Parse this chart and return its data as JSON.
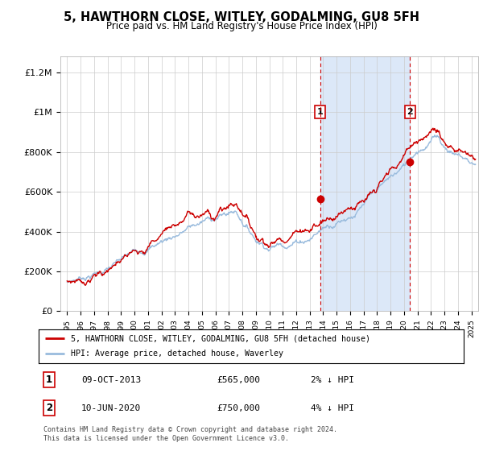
{
  "title": "5, HAWTHORN CLOSE, WITLEY, GODALMING, GU8 5FH",
  "subtitle": "Price paid vs. HM Land Registry's House Price Index (HPI)",
  "background_color": "#ffffff",
  "plot_bg_color": "#ffffff",
  "ylabel_ticks": [
    "£0",
    "£200K",
    "£400K",
    "£600K",
    "£800K",
    "£1M",
    "£1.2M"
  ],
  "ytick_values": [
    0,
    200000,
    400000,
    600000,
    800000,
    1000000,
    1200000
  ],
  "ylim": [
    0,
    1280000
  ],
  "xlim_start": 1994.5,
  "xlim_end": 2025.5,
  "xticks": [
    1995,
    1996,
    1997,
    1998,
    1999,
    2000,
    2001,
    2002,
    2003,
    2004,
    2005,
    2006,
    2007,
    2008,
    2009,
    2010,
    2011,
    2012,
    2013,
    2014,
    2015,
    2016,
    2017,
    2018,
    2019,
    2020,
    2021,
    2022,
    2023,
    2024,
    2025
  ],
  "purchase1_x": 2013.77,
  "purchase1_y": 565000,
  "purchase1_label": "1",
  "purchase1_date": "09-OCT-2013",
  "purchase1_price": "£565,000",
  "purchase1_hpi": "2% ↓ HPI",
  "purchase2_x": 2020.44,
  "purchase2_y": 750000,
  "purchase2_label": "2",
  "purchase2_date": "10-JUN-2020",
  "purchase2_price": "£750,000",
  "purchase2_hpi": "4% ↓ HPI",
  "legend_line1": "5, HAWTHORN CLOSE, WITLEY, GODALMING, GU8 5FH (detached house)",
  "legend_line2": "HPI: Average price, detached house, Waverley",
  "footer": "Contains HM Land Registry data © Crown copyright and database right 2024.\nThis data is licensed under the Open Government Licence v3.0.",
  "line_color_price": "#cc0000",
  "line_color_hpi": "#99bbdd",
  "dot_color": "#cc0000",
  "shade_color": "#dce8f8",
  "vline_color": "#cc0000",
  "label_box_color": "#cc0000",
  "grid_color": "#cccccc"
}
